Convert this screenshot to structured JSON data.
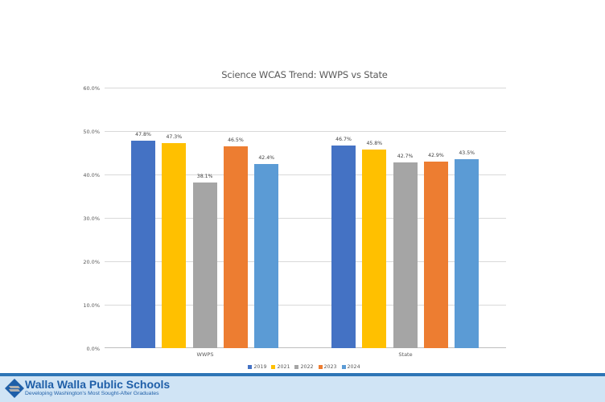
{
  "chart_data": {
    "type": "bar",
    "title": "Science WCAS Trend: WWPS vs State",
    "xlabel": "",
    "ylabel": "",
    "ylim": [
      0,
      60
    ],
    "yticks": [
      "0.0%",
      "10.0%",
      "20.0%",
      "30.0%",
      "40.0%",
      "50.0%",
      "60.0%"
    ],
    "grid": true,
    "legend_position": "bottom",
    "categories": [
      "WWPS",
      "State"
    ],
    "series": [
      {
        "name": "2019",
        "color": "#4472c4",
        "values": [
          47.8,
          46.7
        ],
        "labels": [
          "47.8%",
          "46.7%"
        ]
      },
      {
        "name": "2021",
        "color": "#ffc000",
        "values": [
          47.3,
          45.8
        ],
        "labels": [
          "47.3%",
          "45.8%"
        ]
      },
      {
        "name": "2022",
        "color": "#a5a5a5",
        "values": [
          38.1,
          42.7
        ],
        "labels": [
          "38.1%",
          "42.7%"
        ]
      },
      {
        "name": "2023",
        "color": "#ed7d31",
        "values": [
          46.5,
          42.9
        ],
        "labels": [
          "46.5%",
          "42.9%"
        ]
      },
      {
        "name": "2024",
        "color": "#5b9bd5",
        "values": [
          42.4,
          43.5
        ],
        "labels": [
          "42.4%",
          "43.5%"
        ]
      }
    ]
  },
  "footer": {
    "school_name": "Walla Walla Public Schools",
    "tagline": "Developing Washington's Most Sought-After Graduates",
    "accent_color": "#2e75b6",
    "background_color": "#d0e4f5"
  }
}
